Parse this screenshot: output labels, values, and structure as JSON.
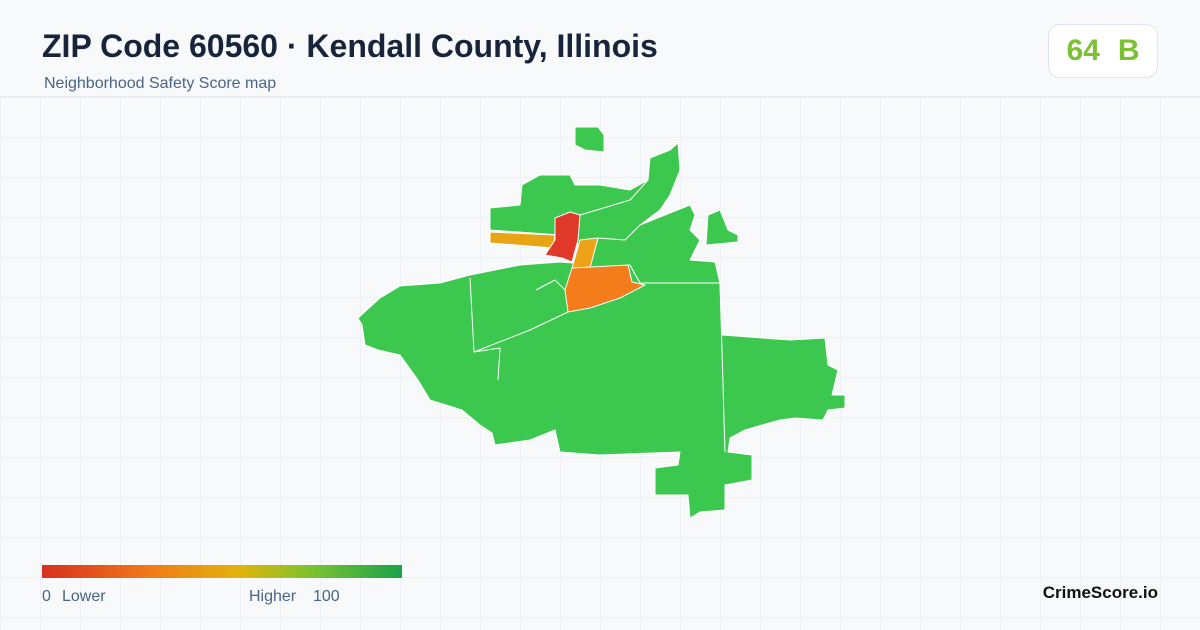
{
  "header": {
    "title": "ZIP Code 60560 · Kendall County, Illinois",
    "subtitle": "Neighborhood Safety Score map"
  },
  "score": {
    "value": 64,
    "grade": "B"
  },
  "legend": {
    "min": 0,
    "min_label": "Lower",
    "max_label": "Higher",
    "max": 100
  },
  "footer": {
    "brand": "CrimeScore.io"
  }
}
